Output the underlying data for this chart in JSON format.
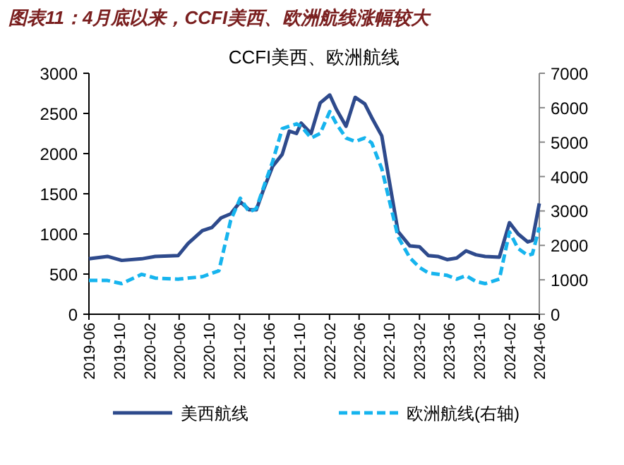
{
  "chart_data": {
    "type": "line",
    "title": "图表11：4月底以来，CCFI美西、欧洲航线涨幅较大",
    "subtitle": "CCFI美西、欧洲航线",
    "xlim": [
      "2019-06",
      "2024-06"
    ],
    "xticks": [
      "2019-06",
      "2019-10",
      "2020-02",
      "2020-06",
      "2020-10",
      "2021-02",
      "2021-06",
      "2021-10",
      "2022-02",
      "2022-06",
      "2022-10",
      "2023-02",
      "2023-06",
      "2023-10",
      "2024-02",
      "2024-06"
    ],
    "ylim": [
      0,
      3000
    ],
    "yticks": [
      0,
      500,
      1000,
      1500,
      2000,
      2500,
      3000
    ],
    "y2lim": [
      0,
      7000
    ],
    "y2ticks": [
      0,
      1000,
      2000,
      3000,
      4000,
      5000,
      6000,
      7000
    ],
    "grid": false,
    "legend": "bottom",
    "marker": "none",
    "series": [
      {
        "name": "美西航线",
        "color": "#2e4a8c",
        "line_style": "solid",
        "x": [
          "2019-06-01",
          "2019-08-15",
          "2019-10-12",
          "2020-01-01",
          "2020-02-25",
          "2020-05-28",
          "2020-07-07",
          "2020-09-03",
          "2020-10-12",
          "2020-11-18",
          "2020-12-27",
          "2021-02-04",
          "2021-03-12",
          "2021-04-10",
          "2021-05-09",
          "2021-06-15",
          "2021-07-24",
          "2021-08-22",
          "2021-09-20",
          "2021-10-09",
          "2021-11-18",
          "2021-12-25",
          "2022-02-02",
          "2022-03-01",
          "2022-04-09",
          "2022-05-16",
          "2022-06-24",
          "2022-07-22",
          "2022-09-01",
          "2022-09-28",
          "2022-11-06",
          "2022-12-24",
          "2023-02-01",
          "2023-03-09",
          "2023-04-16",
          "2023-05-24",
          "2023-07-02",
          "2023-08-09",
          "2023-09-18",
          "2023-10-25",
          "2023-12-22",
          "2024-02-01",
          "2024-03-07",
          "2024-04-15",
          "2024-05-04",
          "2024-06-01"
        ],
        "values": [
          690,
          720,
          670,
          690,
          720,
          730,
          880,
          1040,
          1080,
          1200,
          1250,
          1400,
          1300,
          1300,
          1550,
          1840,
          1990,
          2280,
          2250,
          2380,
          2250,
          2630,
          2730,
          2550,
          2340,
          2700,
          2620,
          2450,
          2220,
          1720,
          1030,
          850,
          840,
          730,
          720,
          680,
          700,
          790,
          740,
          720,
          710,
          1140,
          1000,
          900,
          920,
          1380
        ]
      },
      {
        "name": "欧洲航线(右轴)",
        "color": "#16b4ee",
        "line_style": "dashed",
        "axis": "y2",
        "x": [
          "2019-06-01",
          "2019-08-15",
          "2019-10-12",
          "2020-01-01",
          "2020-02-25",
          "2020-05-28",
          "2020-09-03",
          "2020-11-09",
          "2020-12-27",
          "2021-02-04",
          "2021-03-12",
          "2021-04-10",
          "2021-05-09",
          "2021-06-15",
          "2021-07-24",
          "2021-08-22",
          "2021-09-20",
          "2021-10-09",
          "2021-11-18",
          "2021-12-25",
          "2022-02-02",
          "2022-03-01",
          "2022-04-09",
          "2022-05-16",
          "2022-06-24",
          "2022-07-22",
          "2022-09-01",
          "2022-09-28",
          "2022-11-06",
          "2022-12-24",
          "2023-02-01",
          "2023-03-09",
          "2023-05-24",
          "2023-07-02",
          "2023-08-09",
          "2023-09-18",
          "2023-10-25",
          "2023-12-22",
          "2024-02-01",
          "2024-03-07",
          "2024-04-15",
          "2024-05-04",
          "2024-06-01"
        ],
        "values": [
          980,
          980,
          890,
          1160,
          1050,
          1020,
          1090,
          1260,
          2730,
          3370,
          2970,
          3070,
          3680,
          4430,
          5390,
          5460,
          5530,
          5460,
          5120,
          5250,
          5890,
          5530,
          5120,
          5020,
          5120,
          4980,
          4230,
          3410,
          2250,
          1640,
          1360,
          1200,
          1130,
          1020,
          1120,
          950,
          890,
          1020,
          2390,
          1910,
          1710,
          1750,
          2520
        ]
      }
    ]
  }
}
